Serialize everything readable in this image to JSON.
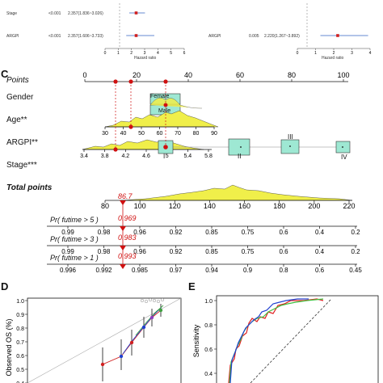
{
  "forest": {
    "left_rows": [
      {
        "label": "Stage",
        "pvalue": "<0.001",
        "hr_text": "2.357(1.836~3.026)",
        "hr": 2.357,
        "lo": 1.836,
        "hi": 3.026
      },
      {
        "label": "ARGPI",
        "pvalue": "<0.001",
        "hr_text": "2.357(1.606~3.733)",
        "hr": 2.357,
        "lo": 1.606,
        "hi": 3.733
      }
    ],
    "left_ticks": [
      "0",
      "1",
      "2",
      "3",
      "4",
      "5",
      "6"
    ],
    "left_xlabel": "Hazard ratio",
    "right_row": {
      "label": "ARGPI",
      "pvalue": "0.005",
      "hr_text": "2.220(1.267~3.892)",
      "hr": 2.22,
      "lo": 1.267,
      "hi": 3.892
    },
    "right_ticks": [
      "0",
      "1",
      "2",
      "3",
      "4"
    ],
    "right_xlabel": "Hazard ratio"
  },
  "nomogram": {
    "panel_letter": "C",
    "rows": {
      "points": "Points",
      "gender": "Gender",
      "age": "Age**",
      "argpi": "ARGPI**",
      "stage": "Stage***",
      "total": "Total points",
      "pr5": "Pr( futime > 5 )",
      "pr3": "Pr( futime > 3 )",
      "pr1": "Pr( futime > 1 )"
    },
    "points_ticks": [
      "0",
      "20",
      "40",
      "60",
      "80",
      "100"
    ],
    "gender_labels": [
      "Female",
      "Male"
    ],
    "age_ticks": [
      "30",
      "40",
      "50",
      "60",
      "70",
      "80",
      "90"
    ],
    "argpi_ticks": [
      "3.4",
      "3.8",
      "4.2",
      "4.6",
      "5",
      "5.4",
      "5.8"
    ],
    "stage_labels": [
      "I",
      "II",
      "III",
      "IV"
    ],
    "total_ticks": [
      "80",
      "100",
      "120",
      "140",
      "160",
      "180",
      "200",
      "220"
    ],
    "total_value": "86.7",
    "pr5_ticks": [
      "0.99",
      "0.98",
      "0.96",
      "0.92",
      "0.85",
      "0.75",
      "0.6",
      "0.4",
      "0.2"
    ],
    "pr5_value": "0.969",
    "pr3_ticks": [
      "0.99",
      "0.98",
      "0.96",
      "0.92",
      "0.85",
      "0.75",
      "0.6",
      "0.4",
      "0.2"
    ],
    "pr3_value": "0.983",
    "pr1_ticks": [
      "0.996",
      "0.992",
      "0.985",
      "0.97",
      "0.94",
      "0.9",
      "0.8",
      "0.6",
      "0.45"
    ],
    "pr1_value": "0.993",
    "colors": {
      "density": "#f0ef4a",
      "box": "#9ee8d3",
      "red": "#d01010"
    }
  },
  "calibration": {
    "panel_letter": "D",
    "ylabel": "Observed OS (%)",
    "yticks": [
      "0.4",
      "0.5",
      "0.6",
      "0.7",
      "0.8",
      "0.9",
      "1.0"
    ]
  },
  "roc": {
    "panel_letter": "E",
    "ylabel": "Sensitivity",
    "yticks": [
      "0.4",
      "0.6",
      "0.8",
      "1.0"
    ],
    "colors": {
      "red": "#e02020",
      "green": "#40c040",
      "blue": "#2040d0"
    }
  }
}
